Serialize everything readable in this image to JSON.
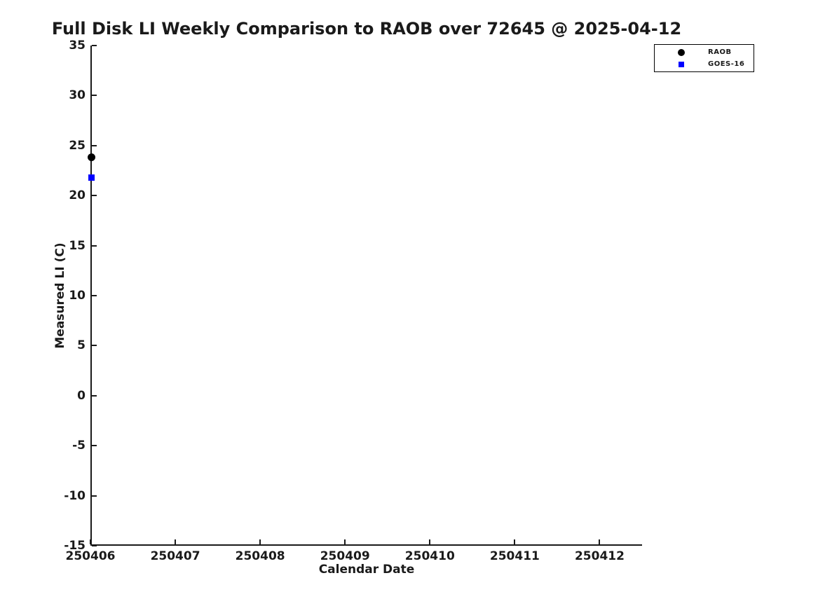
{
  "chart_data": {
    "type": "scatter",
    "title": "Full Disk LI Weekly Comparison to RAOB over 72645 @ 2025-04-12",
    "xlabel": "Calendar Date",
    "ylabel": "Measured LI (C)",
    "xlim": [
      250406,
      250412.5
    ],
    "ylim": [
      -15,
      35
    ],
    "xticks": [
      250406,
      250407,
      250408,
      250409,
      250410,
      250411,
      250412
    ],
    "yticks": [
      35,
      30,
      25,
      20,
      15,
      10,
      5,
      0,
      -5,
      -10,
      -15
    ],
    "grid": false,
    "legend_position": "top-right-outside",
    "colors": {
      "background": "#ffffff",
      "axis": "#1a1a1a",
      "text": "#1a1a1a"
    },
    "series": [
      {
        "name": "RAOB",
        "marker": "circle",
        "color": "#000000",
        "points": [
          {
            "x": 250406,
            "y": 23.8
          }
        ]
      },
      {
        "name": "GOES-16",
        "marker": "square",
        "color": "#0000ff",
        "points": [
          {
            "x": 250406,
            "y": 21.8
          }
        ]
      }
    ]
  }
}
